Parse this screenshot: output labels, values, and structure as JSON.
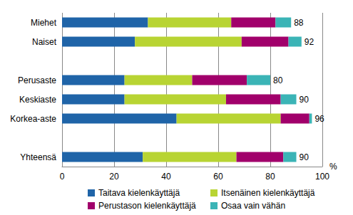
{
  "chart_data": {
    "type": "bar",
    "orientation": "horizontal",
    "stacked": true,
    "grid": true,
    "legend": "bottom",
    "xlabel": "%",
    "categories": [
      "Miehet",
      "Naiset",
      null,
      "Perusaste",
      "Keskiaste",
      "Korkea-aste",
      null,
      "Yhteensä"
    ],
    "xlim": [
      0,
      100
    ],
    "xticks": [
      0,
      20,
      40,
      60,
      80,
      100
    ],
    "series": [
      {
        "name": "Taitava kielenkäyttäjä",
        "color": "#1f64a8",
        "values": [
          33,
          28,
          null,
          24,
          24,
          44,
          null,
          31
        ]
      },
      {
        "name": "Itsenäinen kielenkäyttäjä",
        "color": "#b8d433",
        "values": [
          32,
          41,
          null,
          26,
          39,
          40,
          null,
          36
        ]
      },
      {
        "name": "Perustason kielenkäyttäjä",
        "color": "#a1006b",
        "values": [
          17,
          18,
          null,
          21,
          21,
          11,
          null,
          18
        ]
      },
      {
        "name": "Osaa vain vähän",
        "color": "#3bb4b6",
        "values": [
          6,
          5,
          null,
          9,
          6,
          1,
          null,
          5
        ]
      }
    ],
    "totals": [
      88,
      92,
      null,
      80,
      90,
      96,
      null,
      90
    ]
  }
}
